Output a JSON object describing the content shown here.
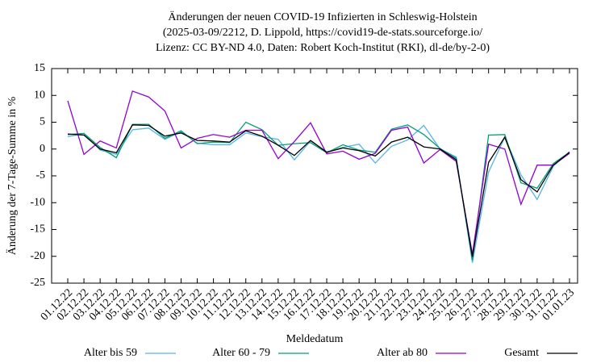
{
  "chart_data": {
    "type": "line",
    "title": [
      "Änderungen der neuen COVID-19 Infizierten in Schleswig-Holstein",
      "(2025-03-09/2212, D. Lippold, https://covid19-de-stats.sourceforge.io/",
      "Lizenz: CC BY-ND 4.0, Daten: Robert Koch-Institut (RKI), dl-de/by-2-0)"
    ],
    "ylabel": "Änderung der 7-Tage-Summe in %",
    "xlabel": "Meldedatum",
    "categories": [
      "01.12.22",
      "02.12.22",
      "03.12.22",
      "04.12.22",
      "05.12.22",
      "06.12.22",
      "07.12.22",
      "08.12.22",
      "09.12.22",
      "10.12.22",
      "11.12.22",
      "12.12.22",
      "13.12.22",
      "14.12.22",
      "15.12.22",
      "16.12.22",
      "17.12.22",
      "18.12.22",
      "19.12.22",
      "20.12.22",
      "21.12.22",
      "22.12.22",
      "23.12.22",
      "24.12.22",
      "25.12.22",
      "26.12.22",
      "27.12.22",
      "28.12.22",
      "29.12.22",
      "30.12.22",
      "31.12.22",
      "01.01.23"
    ],
    "ylim": [
      -25,
      15
    ],
    "yticks": [
      -25,
      -20,
      -15,
      -10,
      -5,
      0,
      5,
      10,
      15
    ],
    "legend": "bottom",
    "series": [
      {
        "name": "Alter bis 59",
        "color": "#56b4e9",
        "values": [
          2.3,
          2.9,
          -0.2,
          -1.0,
          3.6,
          3.9,
          1.8,
          3.2,
          1.1,
          0.8,
          0.8,
          3.0,
          2.3,
          1.8,
          -2.0,
          1.5,
          -0.5,
          0.3,
          0.9,
          -2.6,
          0.5,
          1.7,
          4.4,
          0,
          -1.5,
          -21.2,
          -4.3,
          2.2,
          -4.8,
          -9.4,
          -3.2,
          -0.5
        ]
      },
      {
        "name": "Alter 60 - 79",
        "color": "#009e73",
        "values": [
          2.7,
          2.9,
          0.3,
          -1.6,
          4.6,
          4.6,
          2.0,
          3.4,
          1.0,
          1.3,
          1.2,
          5.0,
          3.6,
          0.7,
          1.0,
          1.2,
          -0.7,
          0.8,
          -0.2,
          -0.6,
          3.7,
          4.5,
          2.7,
          0.1,
          -1.7,
          -20.7,
          2.6,
          2.7,
          -6.3,
          -7.3,
          -2.7,
          -0.6
        ]
      },
      {
        "name": "Alter ab 80",
        "color": "#9400d3",
        "values": [
          9.0,
          -1.0,
          1.5,
          0.2,
          10.8,
          9.7,
          7.1,
          0.2,
          2.0,
          2.7,
          2.2,
          3.5,
          3.5,
          -1.8,
          1.4,
          4.9,
          -0.9,
          -0.4,
          -1.9,
          -0.8,
          3.5,
          4.1,
          -2.6,
          -0.1,
          -2.3,
          -19.6,
          0.9,
          0.0,
          -10.3,
          -3.0,
          -3.0,
          -0.8
        ]
      },
      {
        "name": "Gesamt",
        "color": "#000000",
        "values": [
          2.8,
          2.6,
          0,
          -0.7,
          4.5,
          4.4,
          2.4,
          3.0,
          1.6,
          1.5,
          1.3,
          3.4,
          2.4,
          0.7,
          -1.2,
          1.6,
          -0.6,
          0.2,
          -0.3,
          -1.3,
          1.3,
          2.2,
          0.4,
          0,
          -2.0,
          -20.1,
          -2.5,
          2.2,
          -5.7,
          -8.0,
          -3.0,
          -0.6
        ]
      }
    ]
  }
}
